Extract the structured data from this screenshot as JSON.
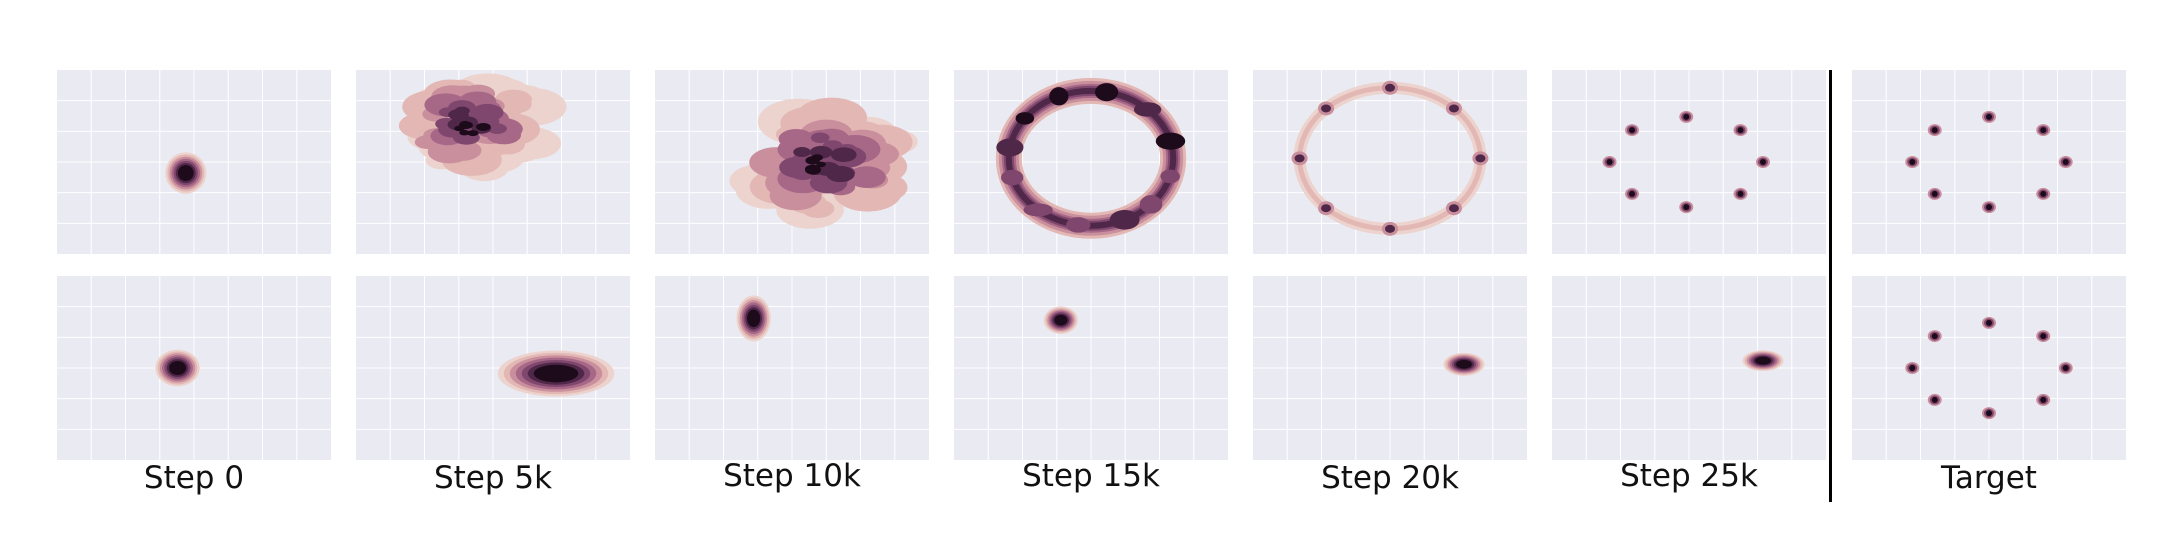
{
  "figure": {
    "panel_background": "#eaeaf2",
    "grid_color": "#ffffff",
    "palette": [
      "#ecd3cd",
      "#e2b7b4",
      "#c98f9c",
      "#a76787",
      "#7f476e",
      "#4f2748",
      "#1d0b1c"
    ]
  },
  "labels": [
    "Step 0",
    "Step 5k",
    "Step 10k",
    "Step 15k",
    "Step 20k",
    "Step 25k",
    "Target"
  ],
  "chart_data": {
    "type": "heatmap",
    "description_units": "normalized panel coordinates (0..1), density contours",
    "columns": [
      {
        "label": "Step 0",
        "top": [
          {
            "shape": "blob",
            "x": 0.47,
            "y": 0.56,
            "sx": 0.06,
            "sy": 0.09
          }
        ],
        "bottom": [
          {
            "shape": "blob",
            "x": 0.44,
            "y": 0.5,
            "sx": 0.065,
            "sy": 0.08
          }
        ]
      },
      {
        "label": "Step 5k",
        "top": [
          {
            "shape": "cloud",
            "x": 0.42,
            "y": 0.3,
            "sx": 0.33,
            "sy": 0.33,
            "seed": 3
          }
        ],
        "bottom": [
          {
            "shape": "blob",
            "x": 0.73,
            "y": 0.53,
            "sx": 0.17,
            "sy": 0.1
          }
        ]
      },
      {
        "label": "Step 10k",
        "top": [
          {
            "shape": "cloud",
            "x": 0.62,
            "y": 0.5,
            "sx": 0.38,
            "sy": 0.4,
            "seed": 7
          }
        ],
        "bottom": [
          {
            "shape": "blob",
            "x": 0.36,
            "y": 0.23,
            "sx": 0.05,
            "sy": 0.1
          }
        ]
      },
      {
        "label": "Step 15k",
        "top": [
          {
            "shape": "ring",
            "x": 0.5,
            "y": 0.48,
            "r": 0.3,
            "ry_scale": 1.15,
            "w": 0.06
          }
        ],
        "bottom": [
          {
            "shape": "blob",
            "x": 0.39,
            "y": 0.24,
            "sx": 0.05,
            "sy": 0.06
          }
        ]
      },
      {
        "label": "Step 20k",
        "top": [
          {
            "shape": "faint_ring_modes",
            "x": 0.5,
            "y": 0.48,
            "r": 0.33,
            "ry_scale": 1.2,
            "modes": 8
          }
        ],
        "bottom": [
          {
            "shape": "blob",
            "x": 0.77,
            "y": 0.48,
            "sx": 0.06,
            "sy": 0.05
          }
        ]
      },
      {
        "label": "Step 25k",
        "top": [
          {
            "shape": "modes",
            "x": 0.49,
            "y": 0.5,
            "r": 0.28,
            "ry_scale": 1.45,
            "modes": 8
          }
        ],
        "bottom": [
          {
            "shape": "blob",
            "x": 0.77,
            "y": 0.46,
            "sx": 0.06,
            "sy": 0.045
          }
        ]
      },
      {
        "label": "Target",
        "top": [
          {
            "shape": "modes",
            "x": 0.5,
            "y": 0.5,
            "r": 0.28,
            "ry_scale": 1.45,
            "modes": 8
          }
        ],
        "bottom": [
          {
            "shape": "modes",
            "x": 0.5,
            "y": 0.5,
            "r": 0.28,
            "ry_scale": 1.45,
            "modes": 8
          }
        ]
      }
    ]
  }
}
